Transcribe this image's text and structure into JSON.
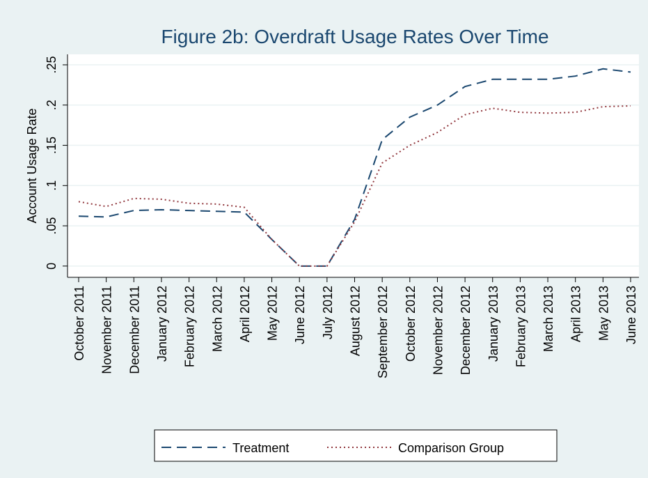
{
  "chart_data": {
    "type": "line",
    "title": "Figure 2b: Overdraft Usage Rates Over Time",
    "ylabel": "Account Usage Rate",
    "categories": [
      "October 2011",
      "November 2011",
      "December 2011",
      "January 2012",
      "February 2012",
      "March 2012",
      "April 2012",
      "May 2012",
      "June 2012",
      "July 2012",
      "August 2012",
      "September 2012",
      "October 2012",
      "November 2012",
      "December 2012",
      "January 2013",
      "February 2013",
      "March 2013",
      "April 2013",
      "May 2013",
      "June 2013"
    ],
    "series": [
      {
        "name": "Treatment",
        "color": "#1a476f",
        "style": "dashed",
        "values": [
          0.062,
          0.061,
          0.069,
          0.07,
          0.069,
          0.068,
          0.067,
          0.033,
          0,
          0,
          0.058,
          0.157,
          0.185,
          0.2,
          0.223,
          0.232,
          0.232,
          0.232,
          0.236,
          0.245,
          0.241
        ]
      },
      {
        "name": "Comparison Group",
        "color": "#90353b",
        "style": "dotted",
        "values": [
          0.08,
          0.074,
          0.084,
          0.083,
          0.078,
          0.077,
          0.073,
          0.033,
          0,
          0,
          0.055,
          0.128,
          0.15,
          0.166,
          0.188,
          0.196,
          0.191,
          0.19,
          0.191,
          0.198,
          0.199
        ]
      }
    ],
    "ylim": [
      -0.014,
      0.263
    ],
    "yticks": [
      0,
      {
        "value": 0.05,
        "label": ".05"
      },
      {
        "value": 0.1,
        "label": ".1"
      },
      {
        "value": 0.15,
        "label": ".15"
      },
      {
        "value": 0.2,
        "label": ".2"
      },
      {
        "value": 0.25,
        "label": ".25"
      }
    ],
    "grid": true,
    "legend": "bottom"
  }
}
